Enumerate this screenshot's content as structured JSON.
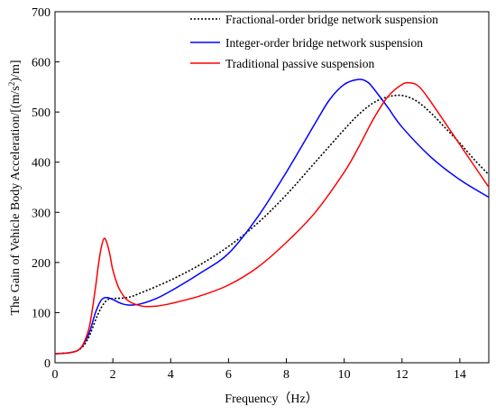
{
  "chart_data": {
    "type": "line",
    "title": "",
    "xlabel": "Frequency（Hz）",
    "ylabel_pre": "The Gain of Vehicle Body Acceleration/[(m/s",
    "ylabel_sup": "2",
    "ylabel_post": ")/m]",
    "xlim": [
      0,
      15
    ],
    "ylim": [
      0,
      700
    ],
    "xticks": [
      "0",
      "2",
      "4",
      "6",
      "8",
      "10",
      "12",
      "14"
    ],
    "yticks": [
      "0",
      "100",
      "200",
      "300",
      "400",
      "500",
      "600",
      "700"
    ],
    "grid": false,
    "legend_position": "top-right",
    "series": [
      {
        "name": "Fractional-order bridge network suspension",
        "color": "#000000",
        "style": "dotted",
        "x": [
          0,
          0.5,
          0.8,
          1.0,
          1.2,
          1.4,
          1.6,
          1.8,
          2.0,
          2.5,
          3.0,
          4.0,
          5.0,
          6.0,
          7.0,
          8.0,
          9.0,
          10.0,
          10.5,
          11.0,
          11.5,
          12.0,
          12.5,
          13.0,
          13.5,
          14.0,
          14.5,
          15.0
        ],
        "y": [
          18,
          20,
          25,
          35,
          55,
          85,
          110,
          125,
          128,
          130,
          140,
          165,
          195,
          232,
          278,
          335,
          400,
          465,
          495,
          518,
          530,
          533,
          522,
          498,
          468,
          438,
          405,
          375
        ]
      },
      {
        "name": "Integer-order bridge network suspension",
        "color": "#0000ff",
        "style": "solid",
        "x": [
          0,
          0.5,
          0.8,
          1.0,
          1.2,
          1.4,
          1.6,
          1.8,
          2.0,
          2.3,
          2.6,
          3.0,
          3.5,
          4.0,
          5.0,
          6.0,
          7.0,
          8.0,
          9.0,
          9.5,
          10.0,
          10.5,
          10.8,
          11.0,
          11.5,
          12.0,
          13.0,
          14.0,
          15.0
        ],
        "y": [
          18,
          20,
          25,
          38,
          62,
          100,
          125,
          130,
          126,
          118,
          115,
          118,
          128,
          143,
          178,
          218,
          290,
          380,
          478,
          525,
          555,
          565,
          560,
          548,
          510,
          470,
          410,
          365,
          330
        ]
      },
      {
        "name": "Traditional passive suspension",
        "color": "#ff0000",
        "style": "solid",
        "x": [
          0,
          0.5,
          0.8,
          1.0,
          1.2,
          1.4,
          1.5,
          1.6,
          1.7,
          1.8,
          1.9,
          2.0,
          2.2,
          2.5,
          3.0,
          3.5,
          4.0,
          5.0,
          6.0,
          7.0,
          8.0,
          9.0,
          10.0,
          10.5,
          11.0,
          11.5,
          12.0,
          12.3,
          12.6,
          13.0,
          14.0,
          15.0
        ],
        "y": [
          18,
          20,
          25,
          40,
          75,
          150,
          195,
          230,
          248,
          238,
          215,
          185,
          150,
          125,
          113,
          113,
          118,
          133,
          155,
          190,
          240,
          300,
          380,
          430,
          485,
          530,
          555,
          558,
          550,
          520,
          435,
          350
        ]
      }
    ]
  }
}
